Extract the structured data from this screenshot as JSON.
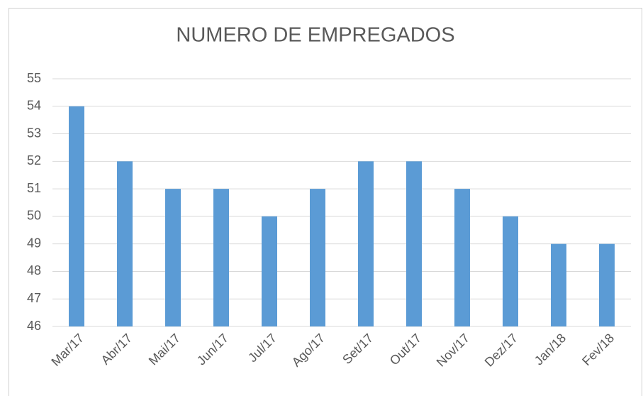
{
  "chart_data": {
    "type": "bar",
    "title": "NUMERO DE EMPREGADOS",
    "categories": [
      "Mar/17",
      "Abr/17",
      "Mai/17",
      "Jun/17",
      "Jul/17",
      "Ago/17",
      "Set/17",
      "Out/17",
      "Nov/17",
      "Dez/17",
      "Jan/18",
      "Fev/18"
    ],
    "values": [
      54,
      52,
      51,
      51,
      50,
      51,
      52,
      52,
      51,
      50,
      49,
      49
    ],
    "color": "#5b9bd5",
    "ylim": [
      46,
      55
    ],
    "yticks": [
      46,
      47,
      48,
      49,
      50,
      51,
      52,
      53,
      54,
      55
    ],
    "grid": true
  }
}
